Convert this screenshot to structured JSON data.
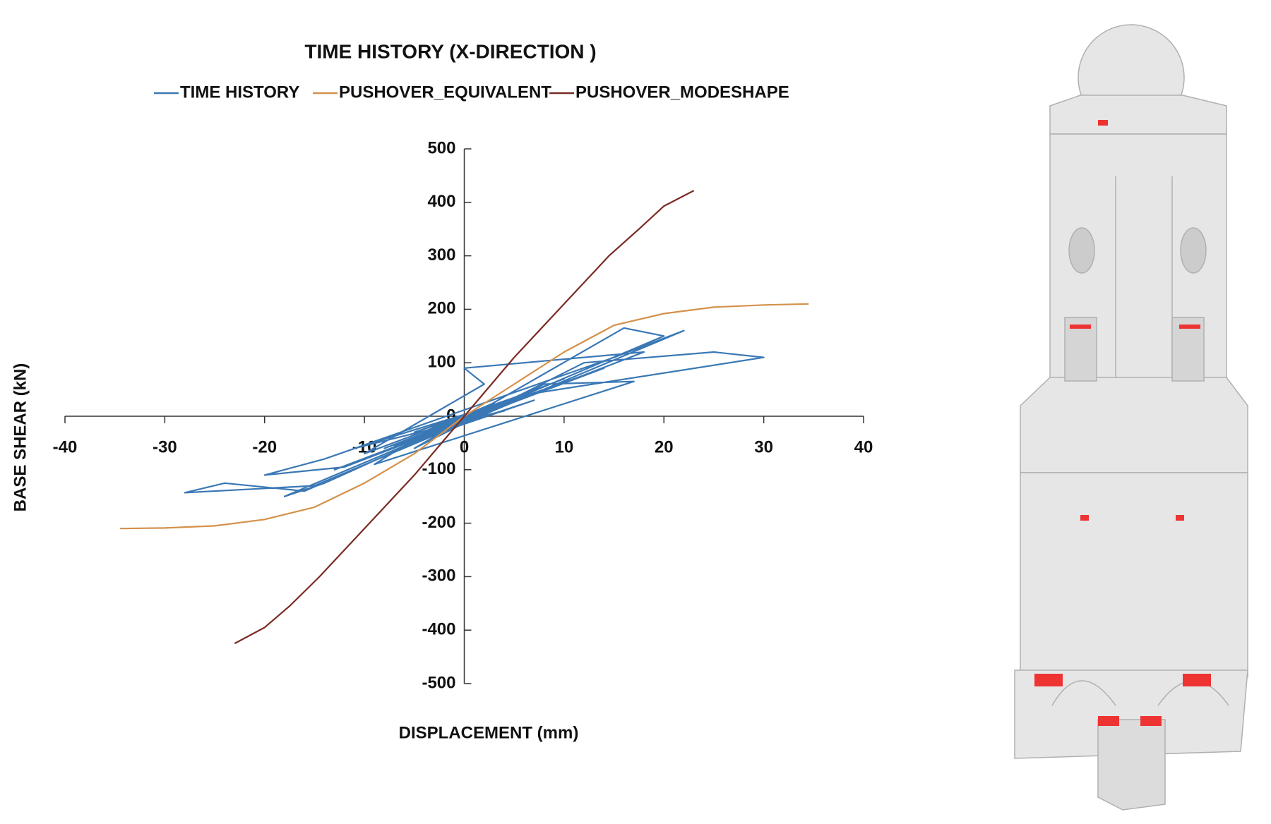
{
  "chart_data": {
    "type": "line",
    "title": "TIME HISTORY (X-DIRECTION )",
    "x_label": "DISPLACEMENT (mm)",
    "y_label": "BASE SHEAR (kN)",
    "xlim": [
      -40,
      40
    ],
    "xticks": [
      -40,
      -30,
      -20,
      -10,
      0,
      10,
      20,
      30,
      40
    ],
    "ylim": [
      -500,
      500
    ],
    "yticks": [
      -500,
      -400,
      -300,
      -200,
      -100,
      0,
      100,
      200,
      300,
      400,
      500
    ],
    "legend": "top",
    "series": [
      {
        "name": "TIME HISTORY",
        "color": "#3a78b5",
        "x": [
          0,
          3,
          -2,
          5,
          -5,
          8,
          -8,
          10,
          -10,
          2,
          0,
          18,
          -12,
          -20,
          -14,
          15,
          22,
          -15,
          -28,
          -24,
          -16,
          6,
          30,
          25,
          12,
          -5,
          16,
          20,
          -18,
          -14,
          8,
          17,
          -9,
          -3,
          4,
          -11,
          9,
          -6,
          7,
          -4,
          3,
          -7,
          11,
          -13,
          14,
          -1,
          0
        ],
        "values": [
          0,
          20,
          -15,
          35,
          -30,
          50,
          -60,
          70,
          -70,
          60,
          90,
          120,
          -95,
          -110,
          -80,
          110,
          160,
          -130,
          -143,
          -125,
          -140,
          40,
          110,
          120,
          100,
          -60,
          165,
          150,
          -150,
          -125,
          60,
          65,
          -90,
          -20,
          10,
          -60,
          55,
          -50,
          30,
          -40,
          25,
          -55,
          70,
          -100,
          90,
          -10,
          0
        ]
      },
      {
        "name": "PUSHOVER_EQUIVALENT",
        "color": "#d4914b",
        "x": [
          -34.5,
          -30,
          -25,
          -20,
          -15,
          -10,
          -5,
          0,
          5,
          10,
          15,
          20,
          25,
          30,
          34.5
        ],
        "values": [
          -210,
          -209,
          -205,
          -193,
          -170,
          -125,
          -70,
          0,
          60,
          120,
          170,
          192,
          204,
          208,
          210
        ]
      },
      {
        "name": "PUSHOVER_MODESHAPE",
        "color": "#7b2a24",
        "x": [
          -23,
          -20,
          -17.5,
          -14.5,
          -10,
          -5,
          0,
          5,
          10,
          14.5,
          17.5,
          20,
          23
        ],
        "values": [
          -425,
          -395,
          -355,
          -300,
          -210,
          -110,
          0,
          110,
          210,
          300,
          350,
          393,
          422
        ]
      }
    ]
  }
}
